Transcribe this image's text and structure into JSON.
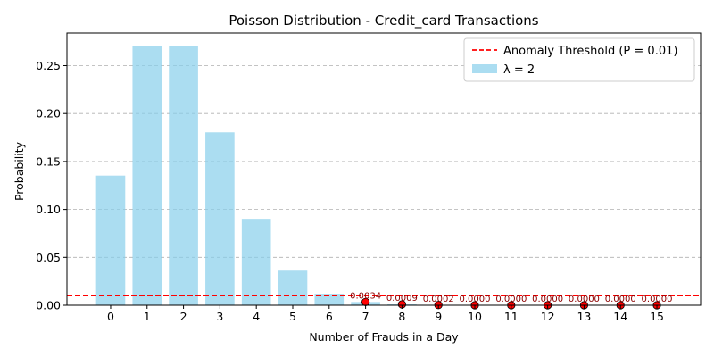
{
  "chart_data": {
    "type": "bar",
    "title": "Poisson Distribution - Credit_card Transactions",
    "xlabel": "Number of Frauds in a Day",
    "ylabel": "Probability",
    "categories": [
      "0",
      "1",
      "2",
      "3",
      "4",
      "5",
      "6",
      "7",
      "8",
      "9",
      "10",
      "11",
      "12",
      "13",
      "14",
      "15"
    ],
    "x": [
      0,
      1,
      2,
      3,
      4,
      5,
      6,
      7,
      8,
      9,
      10,
      11,
      12,
      13,
      14,
      15
    ],
    "values": [
      0.1353,
      0.2707,
      0.2707,
      0.1804,
      0.0902,
      0.0361,
      0.012,
      0.0034,
      0.0009,
      0.0002,
      0.0,
      0.0,
      0.0,
      0.0,
      0.0,
      0.0
    ],
    "series_name": "λ = 2",
    "bar_color": "#87ceeb",
    "threshold": {
      "value": 0.01,
      "label": "Anomaly Threshold (P = 0.01)",
      "color": "#ff0000"
    },
    "anomalies": {
      "x": [
        7,
        8,
        9,
        10,
        11,
        12,
        13,
        14,
        15
      ],
      "labels": [
        "0.0034",
        "0.0009",
        "0.0002",
        "0.0000",
        "0.0000",
        "0.0000",
        "0.0000",
        "0.0000",
        "0.0000"
      ],
      "marker_color": "#ff0000",
      "label_color": "#8b0000"
    },
    "ylim": [
      0,
      0.284
    ],
    "xlim": [
      -1.2,
      16.2
    ],
    "yticks": [
      0.0,
      0.05,
      0.1,
      0.15,
      0.2,
      0.25
    ],
    "ytick_labels": [
      "0.00",
      "0.05",
      "0.10",
      "0.15",
      "0.20",
      "0.25"
    ],
    "grid": "y-dashed",
    "legend_position": "top-right"
  }
}
